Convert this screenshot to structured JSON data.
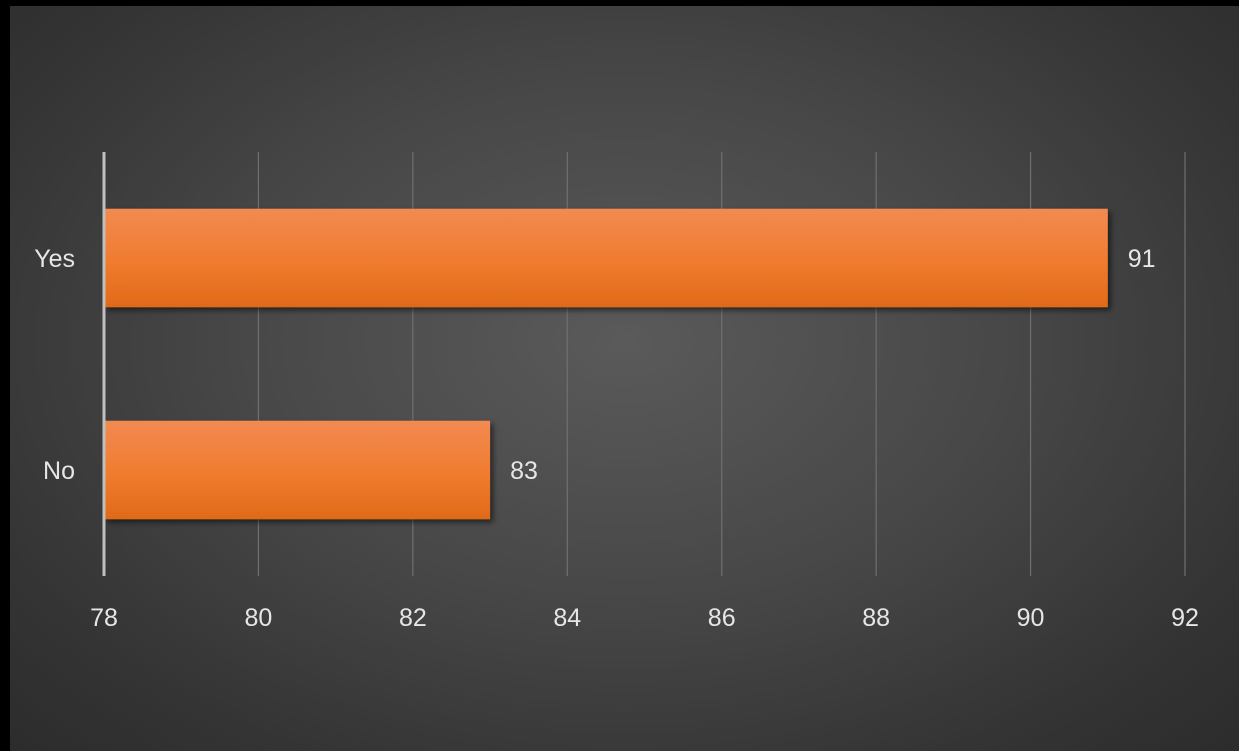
{
  "chart_data": {
    "type": "bar",
    "orientation": "horizontal",
    "categories": [
      "Yes",
      "No"
    ],
    "values": [
      91,
      83
    ],
    "data_labels": [
      "91",
      "83"
    ],
    "title": "",
    "xlabel": "",
    "ylabel": "",
    "xlim": [
      78,
      92
    ],
    "x_ticks": [
      78,
      80,
      82,
      84,
      86,
      88,
      90,
      92
    ],
    "x_tick_labels": [
      "78",
      "80",
      "82",
      "84",
      "86",
      "88",
      "90",
      "92"
    ],
    "grid": true,
    "legend": "none",
    "colors": {
      "bar": "#f07b2e",
      "bar_light": "#f28a52",
      "bar_dark": "#e06a18",
      "grid": "#707070",
      "axis": "#bfbfbf",
      "text": "#e6e6e6"
    }
  }
}
